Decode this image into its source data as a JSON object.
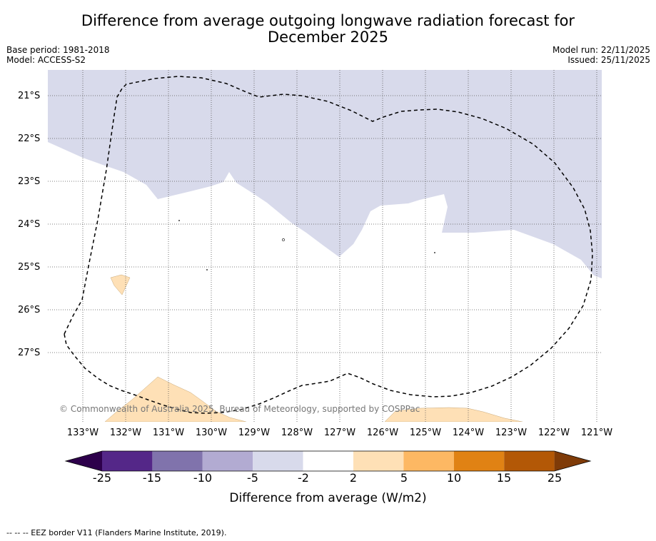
{
  "title": {
    "line1": "Difference from average outgoing longwave radiation forecast for",
    "line2": "December 2025"
  },
  "meta": {
    "base_period": "Base period: 1981-2018",
    "model": "Model: ACCESS-S2",
    "model_run": "Model run: 22/11/2025",
    "issued": "Issued: 25/11/2025"
  },
  "map": {
    "lat_ticks": [
      "21°S",
      "22°S",
      "23°S",
      "24°S",
      "25°S",
      "26°S",
      "27°S"
    ],
    "lon_ticks": [
      "133°W",
      "132°W",
      "131°W",
      "130°W",
      "129°W",
      "128°W",
      "127°W",
      "126°W",
      "125°W",
      "124°W",
      "123°W",
      "122°W",
      "121°W"
    ],
    "copyright": "© Commonwealth of Australia 2025, Bureau of Meteorology, supported by COSPPac",
    "eez_legend": "--  --  -- EEZ border V11 (Flanders Marine Institute, 2019)."
  },
  "colorbar": {
    "title": "Difference from average (W/m2)",
    "labels": [
      "-25",
      "-15",
      "-10",
      "-5",
      "-2",
      "2",
      "5",
      "10",
      "15",
      "25"
    ],
    "colors": {
      "extend_low": "#2d004b",
      "c1": "#542788",
      "c2": "#8073ac",
      "c3": "#b2abd2",
      "c4": "#d8daeb",
      "c5": "#ffffff",
      "c6": "#fee0b6",
      "c7": "#fdb863",
      "c8": "#e08214",
      "c9": "#b35806",
      "extend_high": "#7f3b08"
    }
  }
}
